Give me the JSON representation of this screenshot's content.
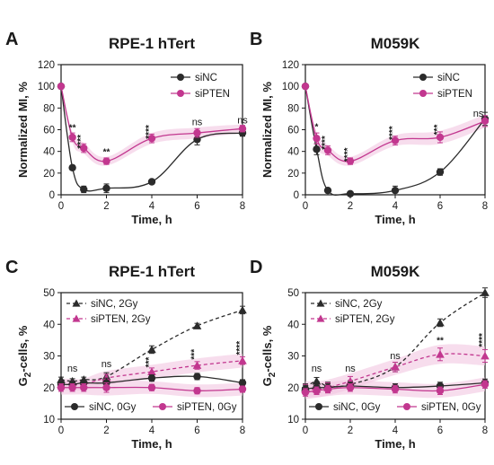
{
  "colors": {
    "siNC": "#2b2b2b",
    "siPTEN": "#c2378f",
    "siPTEN_band": "#f2c6e1"
  },
  "chart_data": [
    {
      "id": "A",
      "letter": "A",
      "type": "line",
      "title": "RPE-1 hTert",
      "xlabel": "Time, h",
      "ylabel": "Normalized MI, %",
      "xlim": [
        0,
        8
      ],
      "ylim": [
        0,
        120
      ],
      "xticks": [
        0,
        2,
        4,
        6,
        8
      ],
      "yticks": [
        0,
        20,
        40,
        60,
        80,
        100,
        120
      ],
      "legend_position": "top-right",
      "series": [
        {
          "name": "siNC",
          "style": "solid",
          "marker": "circle",
          "x": [
            0,
            0.5,
            1,
            2,
            4,
            6,
            8
          ],
          "y": [
            100,
            25,
            5,
            6,
            12,
            51,
            57
          ],
          "err": [
            0,
            2,
            3,
            4,
            1,
            5,
            3
          ]
        },
        {
          "name": "siPTEN",
          "style": "solid",
          "marker": "circle",
          "x": [
            0,
            0.5,
            1,
            2,
            4,
            6,
            8
          ],
          "y": [
            100,
            53,
            43,
            31,
            52,
            57,
            61
          ],
          "err": [
            0,
            4,
            4,
            3,
            4,
            4,
            3
          ]
        }
      ],
      "annotations": [
        {
          "x": 0.5,
          "y": 59,
          "text": "**"
        },
        {
          "x": 1,
          "y": 49,
          "text": "****"
        },
        {
          "x": 2,
          "y": 37,
          "text": "**"
        },
        {
          "x": 4,
          "y": 58,
          "text": "****"
        },
        {
          "x": 6,
          "y": 64,
          "text": "ns"
        },
        {
          "x": 8,
          "y": 66,
          "text": "ns"
        }
      ]
    },
    {
      "id": "B",
      "letter": "B",
      "type": "line",
      "title": "M059K",
      "xlabel": "Time, h",
      "ylabel": "Normalized MI, %",
      "xlim": [
        0,
        8
      ],
      "ylim": [
        0,
        120
      ],
      "xticks": [
        0,
        2,
        4,
        6,
        8
      ],
      "yticks": [
        0,
        20,
        40,
        60,
        80,
        100,
        120
      ],
      "legend_position": "top-right",
      "series": [
        {
          "name": "siNC",
          "style": "solid",
          "marker": "circle",
          "x": [
            0,
            0.5,
            1,
            2,
            4,
            6,
            8
          ],
          "y": [
            100,
            42,
            4,
            1,
            4,
            21,
            70
          ],
          "err": [
            0,
            5,
            2,
            1,
            4,
            3,
            6
          ]
        },
        {
          "name": "siPTEN",
          "style": "solid",
          "marker": "circle",
          "x": [
            0,
            0.5,
            1,
            2,
            4,
            6,
            8
          ],
          "y": [
            100,
            52,
            41,
            31,
            50,
            53,
            68
          ],
          "err": [
            0,
            5,
            4,
            3,
            4,
            5,
            5
          ]
        }
      ],
      "annotations": [
        {
          "x": 0.5,
          "y": 60,
          "text": "*"
        },
        {
          "x": 1,
          "y": 48,
          "text": "****"
        },
        {
          "x": 2,
          "y": 37,
          "text": "****"
        },
        {
          "x": 4,
          "y": 57,
          "text": "****"
        },
        {
          "x": 6,
          "y": 60,
          "text": "***"
        },
        {
          "x": 7.7,
          "y": 72,
          "text": "ns"
        }
      ]
    },
    {
      "id": "C",
      "letter": "C",
      "type": "line",
      "title": "RPE-1 hTert",
      "xlabel": "Time, h",
      "ylabel_main": "G",
      "ylabel_sub": "2",
      "ylabel_tail": "-cells, %",
      "xlim": [
        0,
        8
      ],
      "ylim": [
        10,
        50
      ],
      "xticks": [
        0,
        2,
        4,
        6,
        8
      ],
      "yticks": [
        10,
        20,
        30,
        40,
        50
      ],
      "legend_position": "top-left and bottom",
      "series": [
        {
          "name": "siNC, 2Gy",
          "style": "dashed",
          "marker": "triangle",
          "x": [
            0,
            0.5,
            1,
            2,
            4,
            6,
            8
          ],
          "y": [
            22.5,
            22,
            22.5,
            23.5,
            32,
            39.5,
            44.5
          ],
          "err": [
            0.8,
            0.8,
            0.8,
            1.2,
            1.2,
            0.8,
            1.2
          ]
        },
        {
          "name": "siPTEN, 2Gy",
          "style": "dashed",
          "marker": "triangle",
          "x": [
            0,
            0.5,
            1,
            2,
            4,
            6,
            8
          ],
          "y": [
            21,
            21,
            21,
            23,
            25,
            27,
            28.5
          ],
          "err": [
            0.8,
            0.8,
            0.8,
            1.2,
            1.2,
            1.2,
            1.2
          ]
        },
        {
          "name": "siNC, 0Gy",
          "style": "solid",
          "marker": "circle",
          "x": [
            0,
            0.5,
            1,
            2,
            4,
            6,
            8
          ],
          "y": [
            21,
            21,
            21.5,
            21.5,
            23,
            23.5,
            21.5
          ],
          "err": [
            0.8,
            0.8,
            0.8,
            1.5,
            1,
            1,
            1
          ]
        },
        {
          "name": "siPTEN, 0Gy",
          "style": "solid",
          "marker": "circle",
          "x": [
            0,
            0.5,
            1,
            2,
            4,
            6,
            8
          ],
          "y": [
            20,
            20,
            20,
            20,
            20,
            19,
            19.5
          ],
          "err": [
            1.2,
            1.2,
            1.2,
            1.5,
            1,
            1,
            1
          ]
        }
      ],
      "annotations": [
        {
          "x": 0.5,
          "y": 25,
          "text": "ns"
        },
        {
          "x": 2,
          "y": 26.5,
          "text": "ns"
        },
        {
          "x": 4,
          "y": 28,
          "text": "***"
        },
        {
          "x": 6,
          "y": 30.5,
          "text": "***"
        },
        {
          "x": 8,
          "y": 32.5,
          "text": "****"
        }
      ]
    },
    {
      "id": "D",
      "letter": "D",
      "type": "line",
      "title": "M059K",
      "xlabel": "Time, h",
      "ylabel_main": "G",
      "ylabel_sub": "2",
      "ylabel_tail": "-cells, %",
      "xlim": [
        0,
        8
      ],
      "ylim": [
        10,
        50
      ],
      "xticks": [
        0,
        2,
        4,
        6,
        8
      ],
      "yticks": [
        10,
        20,
        30,
        40,
        50
      ],
      "legend_position": "top-left and bottom",
      "series": [
        {
          "name": "siNC, 2Gy",
          "style": "dashed",
          "marker": "triangle",
          "x": [
            0,
            0.5,
            1,
            2,
            4,
            6,
            8
          ],
          "y": [
            20,
            22,
            20.5,
            21,
            26.5,
            40.5,
            50
          ],
          "err": [
            1.2,
            1.2,
            1.2,
            1.2,
            1.5,
            1.2,
            1.5
          ]
        },
        {
          "name": "siPTEN, 2Gy",
          "style": "dashed",
          "marker": "triangle",
          "x": [
            0,
            0.5,
            1,
            2,
            4,
            6,
            8
          ],
          "y": [
            19.5,
            19.5,
            20,
            22,
            26.5,
            30.5,
            30
          ],
          "err": [
            1.5,
            1.5,
            1.5,
            1.5,
            1.5,
            2,
            2
          ]
        },
        {
          "name": "siNC, 0Gy",
          "style": "solid",
          "marker": "circle",
          "x": [
            0,
            0.5,
            1,
            2,
            4,
            6,
            8
          ],
          "y": [
            19.5,
            20,
            20,
            20.5,
            20,
            20.5,
            21.5
          ],
          "err": [
            1.2,
            1.2,
            1.2,
            1.2,
            1.2,
            1.2,
            1.2
          ]
        },
        {
          "name": "siPTEN, 0Gy",
          "style": "solid",
          "marker": "circle",
          "x": [
            0,
            0.5,
            1,
            2,
            4,
            6,
            8
          ],
          "y": [
            18.5,
            19,
            19.5,
            20,
            19.5,
            19,
            21
          ],
          "err": [
            1.2,
            1.2,
            1.2,
            1.2,
            1.2,
            1.2,
            1.2
          ]
        }
      ],
      "annotations": [
        {
          "x": 0.5,
          "y": 25,
          "text": "ns"
        },
        {
          "x": 2,
          "y": 25,
          "text": "ns"
        },
        {
          "x": 4,
          "y": 29,
          "text": "ns"
        },
        {
          "x": 6,
          "y": 34,
          "text": "**"
        },
        {
          "x": 8,
          "y": 35,
          "text": "****"
        }
      ]
    }
  ]
}
